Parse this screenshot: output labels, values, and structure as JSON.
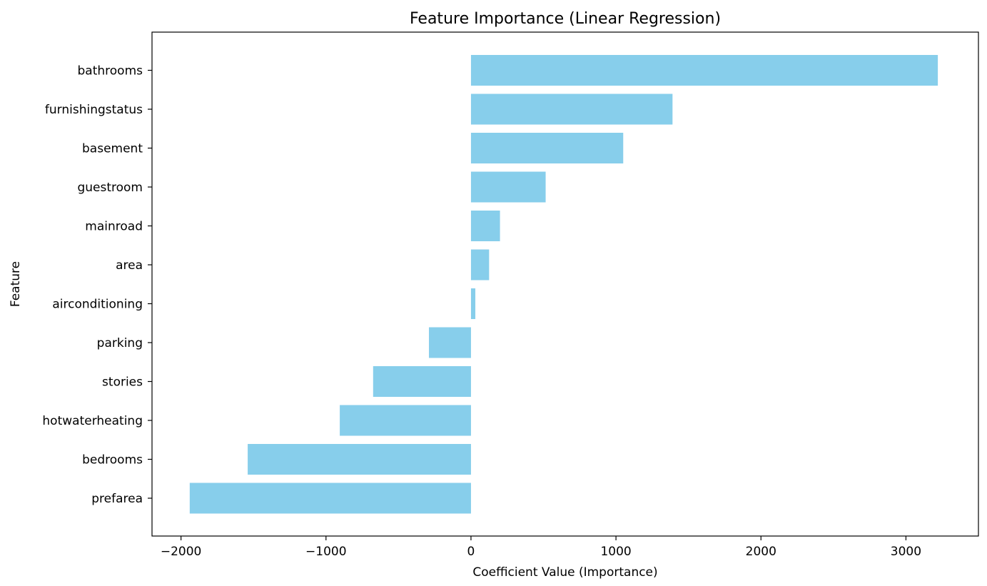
{
  "chart_data": {
    "type": "bar",
    "orientation": "horizontal",
    "title": "Feature Importance (Linear Regression)",
    "xlabel": "Coefficient Value (Importance)",
    "ylabel": "Feature",
    "categories": [
      "bathrooms",
      "furnishingstatus",
      "basement",
      "guestroom",
      "mainroad",
      "area",
      "airconditioning",
      "parking",
      "stories",
      "hotwaterheating",
      "bedrooms",
      "prefarea"
    ],
    "values": [
      3220,
      1390,
      1050,
      515,
      200,
      125,
      30,
      -290,
      -675,
      -905,
      -1540,
      -1940
    ],
    "xlim": [
      -2200,
      3500
    ],
    "xticks": [
      -2000,
      -1000,
      0,
      1000,
      2000,
      3000
    ],
    "xtick_labels": [
      "−2000",
      "−1000",
      "0",
      "1000",
      "2000",
      "3000"
    ],
    "bar_color": "#87ceeb",
    "grid": false,
    "legend": "none"
  }
}
